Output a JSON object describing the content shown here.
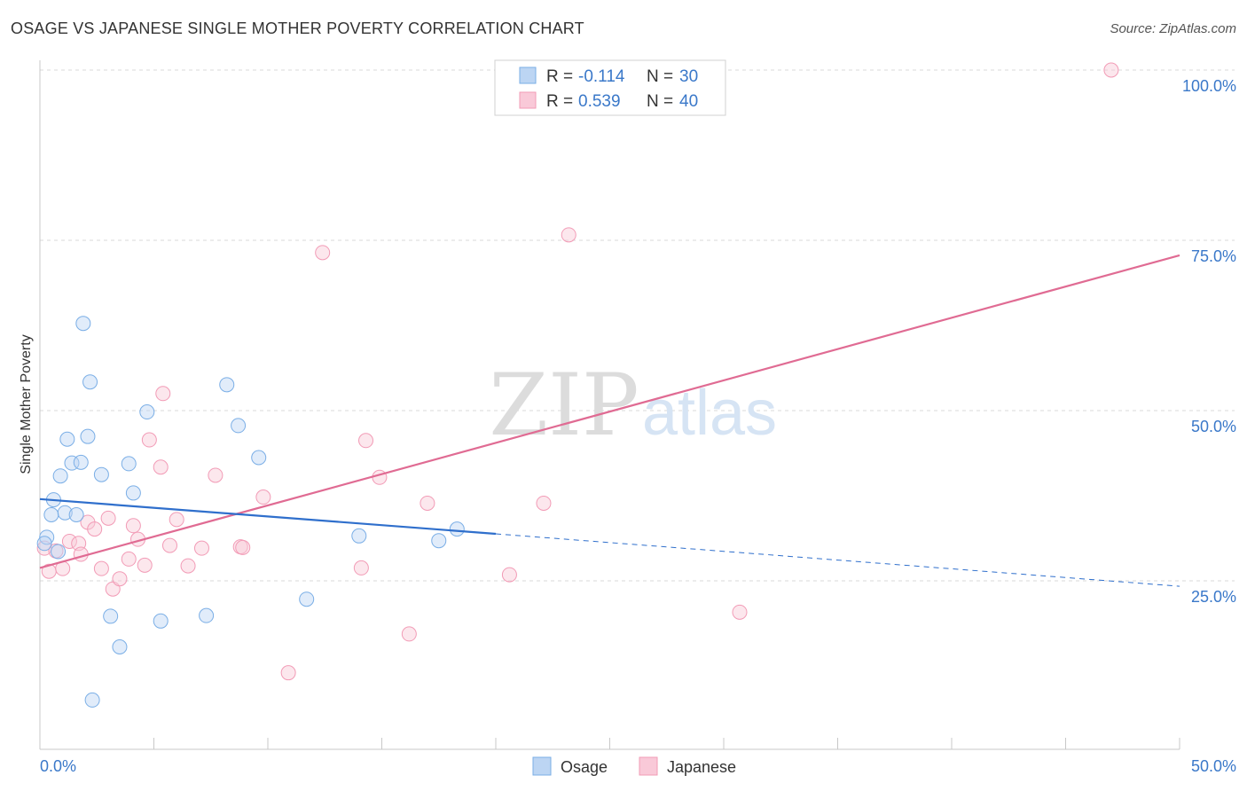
{
  "title": "OSAGE VS JAPANESE SINGLE MOTHER POVERTY CORRELATION CHART",
  "source": "Source: ZipAtlas.com",
  "watermark": {
    "zip": "ZIP",
    "atlas": "atlas"
  },
  "colors": {
    "osage": "#7aaee6",
    "osage_line": "#2f6fcc",
    "japanese": "#f29bb6",
    "japanese_line": "#e06b93",
    "axis_label": "#3a78c9",
    "grid": "#d8d8d8"
  },
  "legend_top": {
    "rows": [
      {
        "r_label": "R =",
        "r_value": "-0.114",
        "n_label": "N =",
        "n_value": "30"
      },
      {
        "r_label": "R =",
        "r_value": "0.539",
        "n_label": "N =",
        "n_value": "40"
      }
    ]
  },
  "chart_data": {
    "type": "scatter",
    "title": "OSAGE VS JAPANESE SINGLE MOTHER POVERTY CORRELATION CHART",
    "xlabel": "",
    "ylabel": "Single Mother Poverty",
    "xlim": [
      0,
      50
    ],
    "ylim": [
      0,
      103
    ],
    "x_tick_labels": [
      "0.0%",
      "50.0%"
    ],
    "y_ticks": [
      25,
      50,
      75,
      100
    ],
    "y_tick_labels": [
      "25.0%",
      "50.0%",
      "75.0%",
      "100.0%"
    ],
    "legend": [
      "Osage",
      "Japanese"
    ],
    "series": [
      {
        "name": "Osage",
        "r": -0.114,
        "n": 30,
        "trend": {
          "x_start": 0,
          "y_start": 37.0,
          "x_end_solid": 20,
          "y_end_solid": 31.9,
          "x_end_dashed": 50,
          "y_end_dashed": 24.2
        },
        "points": [
          [
            0.3,
            31.4
          ],
          [
            0.2,
            30.5
          ],
          [
            0.5,
            34.7
          ],
          [
            0.6,
            36.9
          ],
          [
            0.8,
            29.3
          ],
          [
            0.9,
            40.4
          ],
          [
            1.1,
            35.0
          ],
          [
            1.2,
            45.8
          ],
          [
            1.4,
            42.3
          ],
          [
            1.6,
            34.7
          ],
          [
            1.8,
            42.4
          ],
          [
            1.9,
            62.8
          ],
          [
            2.1,
            46.2
          ],
          [
            2.2,
            54.2
          ],
          [
            2.3,
            7.5
          ],
          [
            2.7,
            40.6
          ],
          [
            3.1,
            19.8
          ],
          [
            3.5,
            15.3
          ],
          [
            3.9,
            42.2
          ],
          [
            4.1,
            37.9
          ],
          [
            4.7,
            49.8
          ],
          [
            5.3,
            19.1
          ],
          [
            7.3,
            19.9
          ],
          [
            8.2,
            53.8
          ],
          [
            8.7,
            47.8
          ],
          [
            9.6,
            43.1
          ],
          [
            11.7,
            22.3
          ],
          [
            14.0,
            31.6
          ],
          [
            17.5,
            30.9
          ],
          [
            18.3,
            32.6
          ]
        ]
      },
      {
        "name": "Japanese",
        "r": 0.539,
        "n": 40,
        "trend": {
          "x_start": 0,
          "y_start": 26.9,
          "x_end": 50,
          "y_end": 72.8
        },
        "points": [
          [
            0.2,
            29.8
          ],
          [
            0.4,
            26.4
          ],
          [
            0.7,
            29.4
          ],
          [
            1.0,
            26.8
          ],
          [
            1.3,
            30.8
          ],
          [
            1.7,
            30.5
          ],
          [
            1.8,
            28.9
          ],
          [
            2.1,
            33.6
          ],
          [
            2.4,
            32.6
          ],
          [
            2.7,
            26.8
          ],
          [
            3.0,
            34.2
          ],
          [
            3.2,
            23.8
          ],
          [
            3.5,
            25.3
          ],
          [
            3.9,
            28.2
          ],
          [
            4.1,
            33.1
          ],
          [
            4.3,
            31.1
          ],
          [
            4.6,
            27.3
          ],
          [
            4.8,
            45.7
          ],
          [
            5.3,
            41.7
          ],
          [
            5.4,
            52.5
          ],
          [
            5.7,
            30.2
          ],
          [
            6.0,
            34.0
          ],
          [
            6.5,
            27.2
          ],
          [
            7.1,
            29.8
          ],
          [
            7.7,
            40.5
          ],
          [
            8.8,
            30.0
          ],
          [
            8.9,
            29.9
          ],
          [
            9.8,
            37.3
          ],
          [
            10.9,
            11.5
          ],
          [
            12.4,
            73.2
          ],
          [
            14.1,
            26.9
          ],
          [
            14.3,
            45.6
          ],
          [
            14.9,
            40.2
          ],
          [
            16.2,
            17.2
          ],
          [
            17.0,
            36.4
          ],
          [
            20.6,
            25.9
          ],
          [
            22.1,
            36.4
          ],
          [
            23.2,
            75.8
          ],
          [
            30.7,
            20.4
          ],
          [
            47.0,
            100.0
          ]
        ]
      }
    ]
  },
  "legend_bottom": [
    {
      "label": "Osage"
    },
    {
      "label": "Japanese"
    }
  ]
}
